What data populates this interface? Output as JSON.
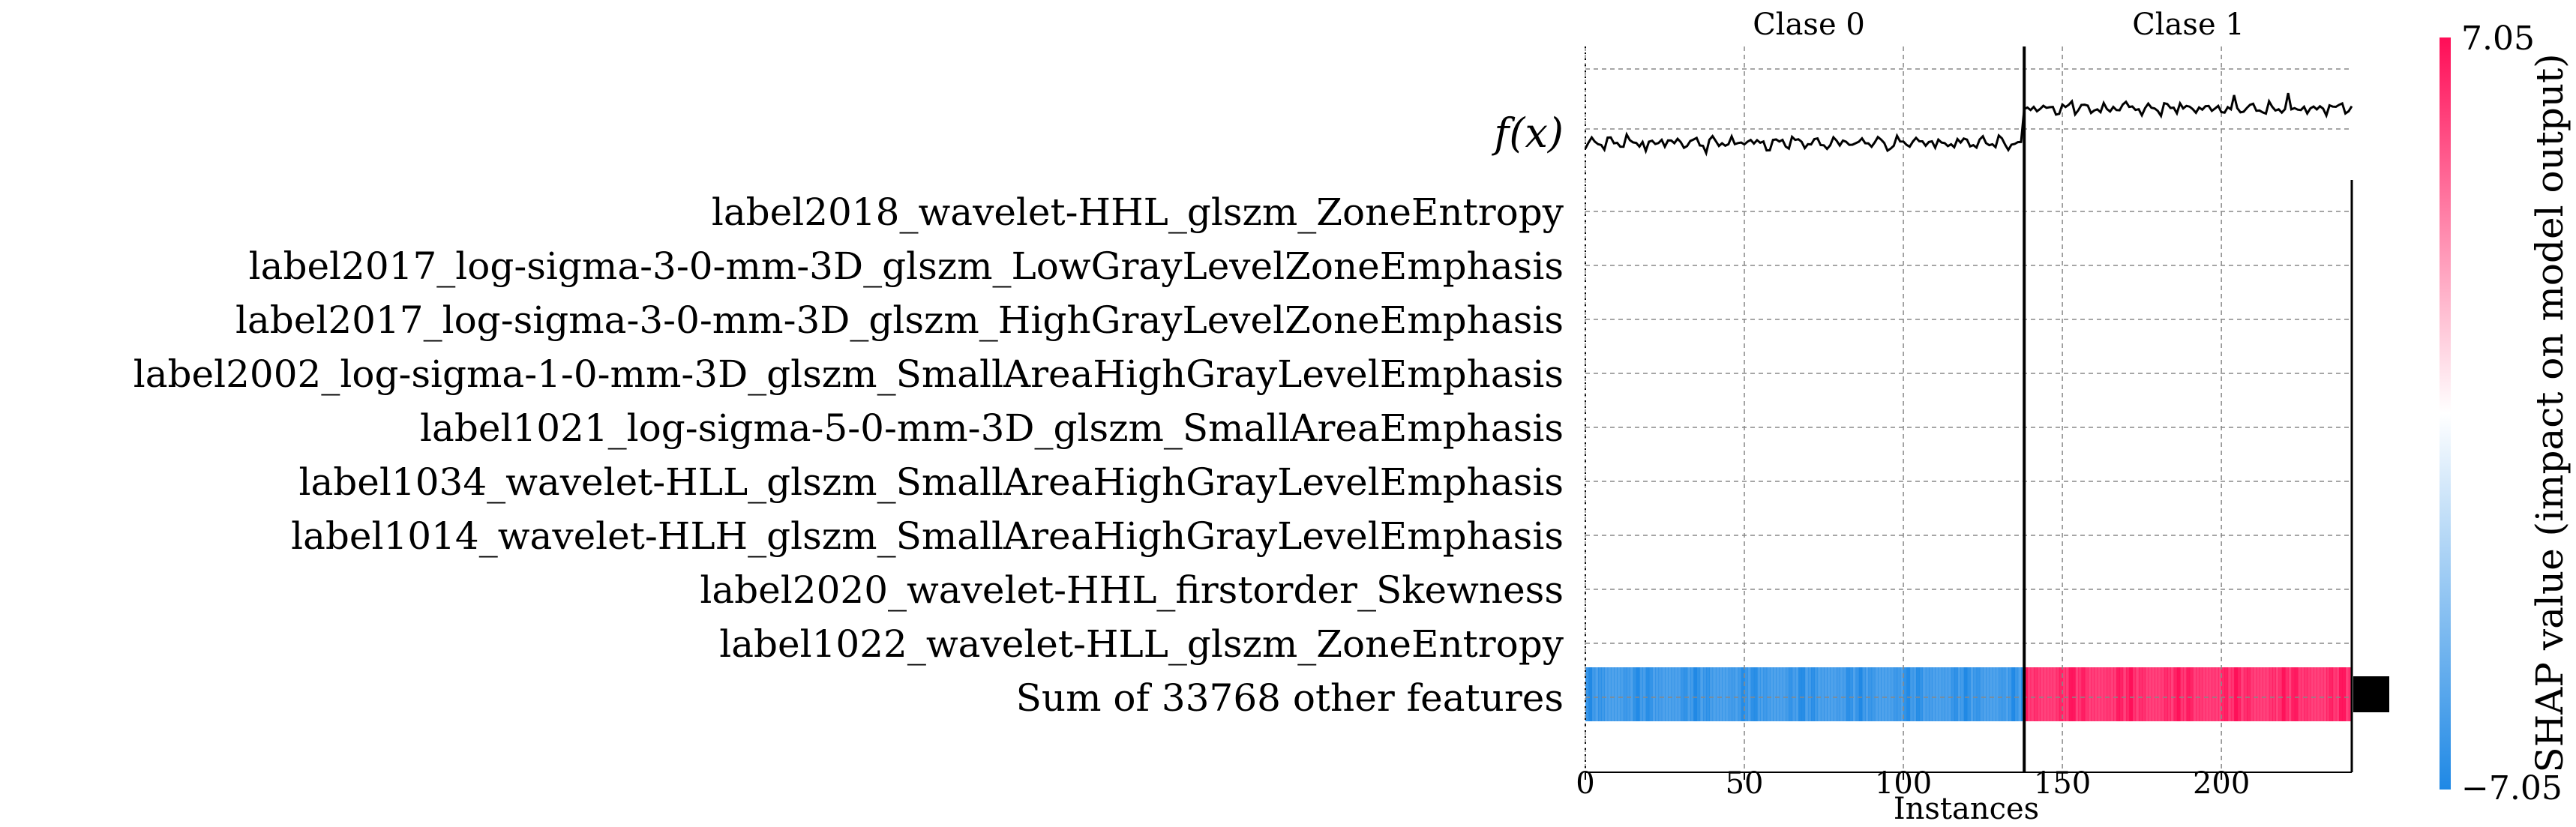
{
  "chart_data": {
    "type": "heatmap",
    "title": "",
    "xlabel": "Instances",
    "xlim": [
      0,
      241
    ],
    "xticks": [
      0,
      50,
      100,
      150,
      200
    ],
    "group_labels": [
      "Clase 0",
      "Clase 1"
    ],
    "group_boundary": 138,
    "fx_label": "f(x)",
    "features": [
      "label2018_wavelet-HHL_glszm_ZoneEntropy",
      "label2017_log-sigma-3-0-mm-3D_glszm_LowGrayLevelZoneEmphasis",
      "label2017_log-sigma-3-0-mm-3D_glszm_HighGrayLevelZoneEmphasis",
      "label2002_log-sigma-1-0-mm-3D_glszm_SmallAreaHighGrayLevelEmphasis",
      "label1021_log-sigma-5-0-mm-3D_glszm_SmallAreaEmphasis",
      "label1034_wavelet-HLL_glszm_SmallAreaHighGrayLevelEmphasis",
      "label1014_wavelet-HLH_glszm_SmallAreaHighGrayLevelEmphasis",
      "label2020_wavelet-HHL_firstorder_Skewness",
      "label1022_wavelet-HLL_glszm_ZoneEntropy",
      "Sum of 33768 other features"
    ],
    "heatmap_summary": {
      "top_features_shap": "approximately 0 for all instances",
      "sum_other_features_clase_0": "approximately -7.05 (blue)",
      "sum_other_features_clase_1": "approximately +7.05 (red)"
    },
    "fx_levels": {
      "clase_0": -1.0,
      "clase_1": 1.0
    },
    "colorbar": {
      "label": "SHAP value (impact on model output)",
      "vmin": -7.05,
      "vmax": 7.05,
      "tick_max": "7.05",
      "tick_min": "−7.05"
    },
    "grid": true
  },
  "colors": {
    "negative": "#1E88E5",
    "positive": "#FF0D57",
    "grid": "#888888",
    "text": "#000000"
  }
}
